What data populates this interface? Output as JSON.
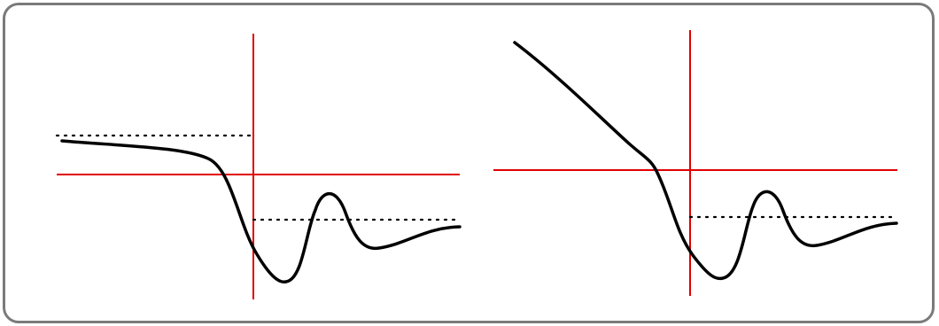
{
  "colors": {
    "axes": "#e00000",
    "curve": "#000000",
    "guides": "#000000",
    "frame": "#7a7a7a",
    "background": "#ffffff"
  },
  "panels": [
    {
      "id": "left",
      "description_free": true,
      "has_left_dotted_level": true,
      "has_right_dotted_level": true
    },
    {
      "id": "right",
      "description_free": true,
      "has_left_dotted_level": false,
      "has_right_dotted_level": true
    }
  ]
}
